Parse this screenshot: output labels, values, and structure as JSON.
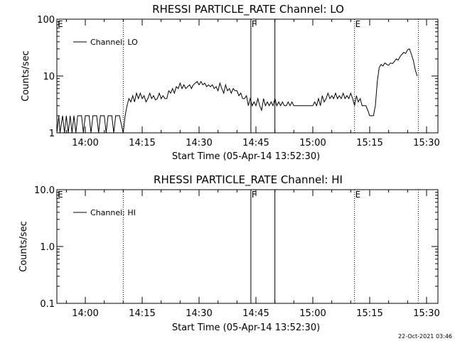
{
  "footer": {
    "timestamp": "22-Oct-2021 03:46"
  },
  "chart_data": [
    {
      "type": "line",
      "title": "RHESSI PARTICLE_RATE Channel: LO",
      "xlabel": "Start Time (05-Apr-14 13:52:30)",
      "ylabel": "Counts/sec",
      "yscale": "log",
      "xlim": [
        "13:52:30",
        "15:33:00"
      ],
      "ylim": [
        1,
        100
      ],
      "x_ticks": [
        "14:00",
        "14:15",
        "14:30",
        "14:45",
        "15:00",
        "15:15",
        "15:30"
      ],
      "y_ticks": [
        "1",
        "10",
        "100"
      ],
      "grid": false,
      "legend": {
        "position": "top-left",
        "entries": [
          "Channel: LO"
        ]
      },
      "markers": [
        {
          "label": "E",
          "time": "13:52:30",
          "style": "none"
        },
        {
          "label": "",
          "time": "14:10:00",
          "style": "dotted"
        },
        {
          "label": "F",
          "time": "14:43:40",
          "style": "solid"
        },
        {
          "label": "",
          "time": "14:50:00",
          "style": "solid"
        },
        {
          "label": "E",
          "time": "15:11:00",
          "style": "dotted"
        },
        {
          "label": "",
          "time": "15:27:50",
          "style": "dotted"
        }
      ],
      "series": [
        {
          "name": "Channel: LO",
          "points": [
            [
              "13:52:30",
              1.0
            ],
            [
              "13:53:00",
              2.0
            ],
            [
              "13:53:20",
              1.0
            ],
            [
              "13:54:00",
              2.0
            ],
            [
              "13:54:30",
              1.0
            ],
            [
              "13:55:00",
              2.0
            ],
            [
              "13:55:30",
              1.0
            ],
            [
              "13:56:00",
              2.0
            ],
            [
              "13:56:30",
              1.0
            ],
            [
              "13:57:00",
              2.0
            ],
            [
              "13:57:30",
              1.0
            ],
            [
              "13:58:00",
              2.0
            ],
            [
              "13:59:00",
              2.0
            ],
            [
              "13:59:30",
              1.0
            ],
            [
              "14:00:00",
              2.0
            ],
            [
              "14:01:00",
              2.0
            ],
            [
              "14:01:30",
              1.0
            ],
            [
              "14:02:00",
              2.0
            ],
            [
              "14:03:00",
              2.0
            ],
            [
              "14:03:30",
              1.0
            ],
            [
              "14:04:00",
              2.0
            ],
            [
              "14:05:00",
              2.0
            ],
            [
              "14:05:30",
              1.0
            ],
            [
              "14:06:00",
              2.0
            ],
            [
              "14:07:00",
              2.0
            ],
            [
              "14:07:30",
              1.0
            ],
            [
              "14:08:00",
              2.0
            ],
            [
              "14:09:00",
              2.0
            ],
            [
              "14:10:00",
              1.0
            ],
            [
              "14:10:30",
              2.0
            ],
            [
              "14:11:00",
              3.0
            ],
            [
              "14:11:30",
              4.0
            ],
            [
              "14:12:00",
              3.5
            ],
            [
              "14:12:30",
              4.5
            ],
            [
              "14:13:00",
              3.5
            ],
            [
              "14:13:30",
              5.0
            ],
            [
              "14:14:00",
              4.0
            ],
            [
              "14:14:30",
              5.0
            ],
            [
              "14:15:00",
              4.0
            ],
            [
              "14:15:30",
              4.5
            ],
            [
              "14:16:00",
              3.5
            ],
            [
              "14:16:30",
              4.0
            ],
            [
              "14:17:00",
              5.0
            ],
            [
              "14:17:30",
              4.0
            ],
            [
              "14:18:00",
              4.5
            ],
            [
              "14:18:30",
              3.8
            ],
            [
              "14:19:00",
              4.0
            ],
            [
              "14:19:30",
              5.0
            ],
            [
              "14:20:00",
              4.0
            ],
            [
              "14:20:30",
              4.5
            ],
            [
              "14:21:00",
              4.0
            ],
            [
              "14:21:30",
              4.0
            ],
            [
              "14:22:00",
              5.5
            ],
            [
              "14:22:30",
              5.0
            ],
            [
              "14:23:00",
              6.0
            ],
            [
              "14:23:30",
              5.0
            ],
            [
              "14:24:00",
              6.5
            ],
            [
              "14:24:30",
              6.0
            ],
            [
              "14:25:00",
              7.5
            ],
            [
              "14:25:30",
              6.0
            ],
            [
              "14:26:00",
              7.0
            ],
            [
              "14:26:30",
              6.0
            ],
            [
              "14:27:00",
              6.5
            ],
            [
              "14:27:30",
              7.0
            ],
            [
              "14:28:00",
              6.0
            ],
            [
              "14:28:30",
              7.0
            ],
            [
              "14:29:00",
              7.5
            ],
            [
              "14:29:30",
              8.0
            ],
            [
              "14:30:00",
              7.0
            ],
            [
              "14:30:30",
              8.0
            ],
            [
              "14:31:00",
              7.0
            ],
            [
              "14:31:30",
              7.5
            ],
            [
              "14:32:00",
              6.5
            ],
            [
              "14:32:30",
              7.0
            ],
            [
              "14:33:00",
              6.5
            ],
            [
              "14:33:30",
              7.0
            ],
            [
              "14:34:00",
              6.0
            ],
            [
              "14:34:30",
              6.5
            ],
            [
              "14:35:00",
              5.5
            ],
            [
              "14:35:30",
              7.5
            ],
            [
              "14:36:00",
              6.0
            ],
            [
              "14:36:30",
              5.0
            ],
            [
              "14:37:00",
              7.0
            ],
            [
              "14:37:30",
              5.5
            ],
            [
              "14:38:00",
              6.0
            ],
            [
              "14:38:30",
              5.0
            ],
            [
              "14:39:00",
              6.0
            ],
            [
              "14:39:30",
              5.5
            ],
            [
              "14:40:00",
              5.5
            ],
            [
              "14:40:30",
              4.5
            ],
            [
              "14:41:00",
              5.0
            ],
            [
              "14:41:30",
              4.0
            ],
            [
              "14:42:00",
              4.0
            ],
            [
              "14:42:30",
              4.5
            ],
            [
              "14:43:00",
              3.0
            ],
            [
              "14:43:30",
              4.0
            ],
            [
              "14:44:00",
              3.0
            ],
            [
              "14:44:30",
              3.5
            ],
            [
              "14:45:00",
              3.0
            ],
            [
              "14:45:30",
              4.0
            ],
            [
              "14:46:00",
              3.0
            ],
            [
              "14:46:30",
              2.5
            ],
            [
              "14:47:00",
              4.0
            ],
            [
              "14:47:30",
              3.0
            ],
            [
              "14:48:00",
              3.5
            ],
            [
              "14:48:30",
              3.0
            ],
            [
              "14:49:00",
              3.5
            ],
            [
              "14:49:30",
              3.0
            ],
            [
              "14:50:00",
              4.0
            ],
            [
              "14:50:30",
              3.0
            ],
            [
              "14:51:00",
              3.5
            ],
            [
              "14:51:30",
              3.0
            ],
            [
              "14:52:00",
              3.5
            ],
            [
              "14:52:30",
              3.0
            ],
            [
              "14:53:00",
              3.0
            ],
            [
              "14:53:30",
              3.5
            ],
            [
              "14:54:00",
              3.0
            ],
            [
              "14:54:30",
              3.5
            ],
            [
              "14:55:00",
              3.0
            ],
            [
              "14:56:00",
              3.0
            ],
            [
              "14:57:00",
              3.0
            ],
            [
              "14:58:00",
              3.0
            ],
            [
              "14:59:00",
              3.0
            ],
            [
              "15:00:00",
              3.0
            ],
            [
              "15:00:30",
              3.5
            ],
            [
              "15:01:00",
              3.0
            ],
            [
              "15:01:30",
              4.0
            ],
            [
              "15:02:00",
              3.0
            ],
            [
              "15:02:30",
              4.5
            ],
            [
              "15:03:00",
              3.5
            ],
            [
              "15:03:30",
              4.0
            ],
            [
              "15:04:00",
              5.0
            ],
            [
              "15:04:30",
              4.0
            ],
            [
              "15:05:00",
              4.5
            ],
            [
              "15:05:30",
              4.0
            ],
            [
              "15:06:00",
              5.0
            ],
            [
              "15:06:30",
              4.0
            ],
            [
              "15:07:00",
              4.5
            ],
            [
              "15:07:30",
              4.0
            ],
            [
              "15:08:00",
              5.0
            ],
            [
              "15:08:30",
              4.0
            ],
            [
              "15:09:00",
              4.5
            ],
            [
              "15:09:30",
              4.0
            ],
            [
              "15:10:00",
              5.0
            ],
            [
              "15:10:30",
              4.0
            ],
            [
              "15:11:00",
              3.0
            ],
            [
              "15:11:30",
              4.5
            ],
            [
              "15:12:00",
              3.5
            ],
            [
              "15:12:30",
              4.0
            ],
            [
              "15:13:00",
              3.0
            ],
            [
              "15:13:30",
              3.0
            ],
            [
              "15:14:00",
              3.0
            ],
            [
              "15:14:30",
              2.5
            ],
            [
              "15:15:00",
              2.0
            ],
            [
              "15:16:00",
              2.0
            ],
            [
              "15:16:30",
              3.0
            ],
            [
              "15:17:00",
              8.0
            ],
            [
              "15:17:30",
              14.0
            ],
            [
              "15:18:00",
              16.0
            ],
            [
              "15:18:30",
              15.0
            ],
            [
              "15:19:00",
              17.0
            ],
            [
              "15:19:30",
              16.0
            ],
            [
              "15:20:00",
              15.5
            ],
            [
              "15:20:30",
              17.0
            ],
            [
              "15:21:00",
              16.5
            ],
            [
              "15:21:30",
              18.0
            ],
            [
              "15:22:00",
              20.0
            ],
            [
              "15:22:30",
              19.0
            ],
            [
              "15:23:00",
              22.0
            ],
            [
              "15:23:30",
              24.0
            ],
            [
              "15:24:00",
              26.0
            ],
            [
              "15:24:30",
              25.0
            ],
            [
              "15:25:00",
              29.0
            ],
            [
              "15:25:30",
              30.0
            ],
            [
              "15:26:00",
              24.0
            ],
            [
              "15:26:30",
              19.0
            ],
            [
              "15:27:00",
              13.0
            ],
            [
              "15:27:30",
              10.0
            ]
          ]
        }
      ]
    },
    {
      "type": "line",
      "title": "RHESSI PARTICLE_RATE Channel: HI",
      "xlabel": "Start Time (05-Apr-14 13:52:30)",
      "ylabel": "Counts/sec",
      "yscale": "log",
      "xlim": [
        "13:52:30",
        "15:33:00"
      ],
      "ylim": [
        0.1,
        10
      ],
      "x_ticks": [
        "14:00",
        "14:15",
        "14:30",
        "14:45",
        "15:00",
        "15:15",
        "15:30"
      ],
      "y_ticks": [
        "0.1",
        "1.0",
        "10.0"
      ],
      "grid": false,
      "legend": {
        "position": "top-left",
        "entries": [
          "Channel: HI"
        ]
      },
      "markers": [
        {
          "label": "E",
          "time": "13:52:30",
          "style": "none"
        },
        {
          "label": "",
          "time": "14:10:00",
          "style": "dotted"
        },
        {
          "label": "F",
          "time": "14:43:40",
          "style": "solid"
        },
        {
          "label": "",
          "time": "14:50:00",
          "style": "solid"
        },
        {
          "label": "E",
          "time": "15:11:00",
          "style": "dotted"
        },
        {
          "label": "",
          "time": "15:27:50",
          "style": "dotted"
        }
      ],
      "series": [
        {
          "name": "Channel: HI",
          "points": []
        }
      ]
    }
  ]
}
